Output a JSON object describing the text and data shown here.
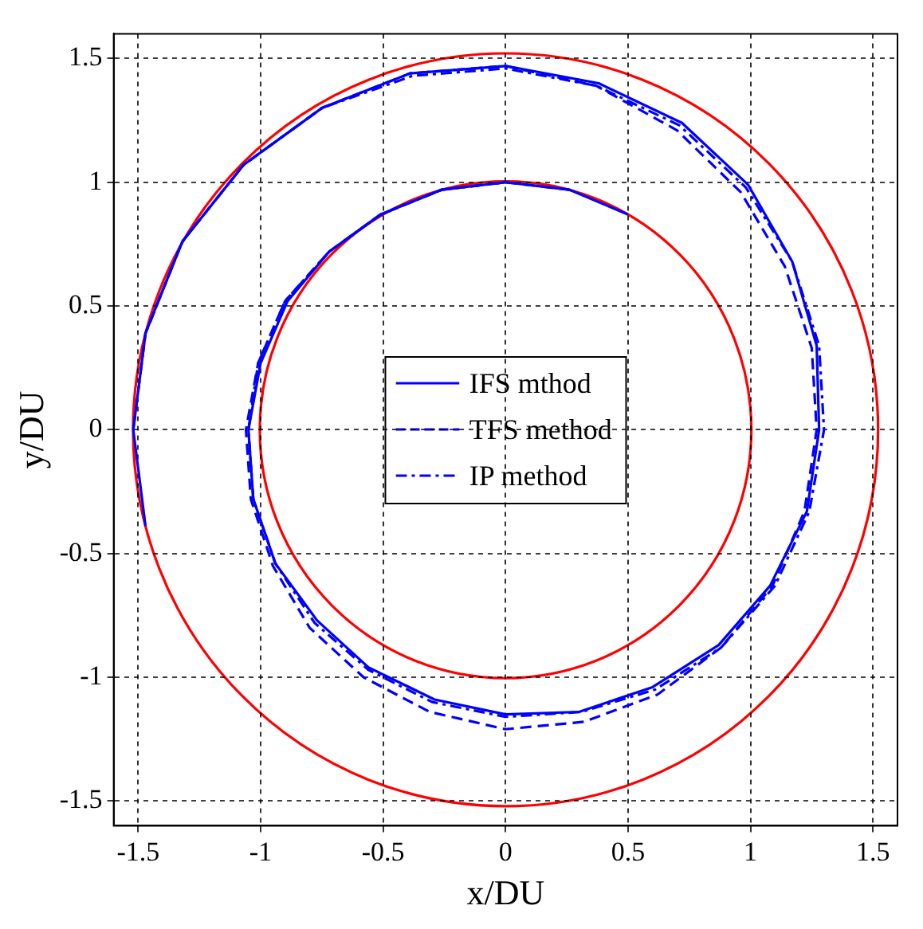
{
  "chart_data": {
    "type": "line",
    "xlabel": "x/DU",
    "ylabel": "y/DU",
    "xlim": [
      -1.6,
      1.6
    ],
    "ylim": [
      -1.6,
      1.6
    ],
    "xticks": [
      -1.5,
      -1,
      -0.5,
      0,
      0.5,
      1,
      1.5
    ],
    "yticks": [
      -1.5,
      -1,
      -0.5,
      0,
      0.5,
      1,
      1.5
    ],
    "grid": true,
    "legend": "center",
    "marker": "none",
    "series": [
      {
        "name": "IFS mthod",
        "color": "#0000ff",
        "line_style": "solid",
        "x": [
          0.5,
          0.26,
          0,
          -0.26,
          -0.51,
          -0.72,
          -0.89,
          -1.0,
          -1.05,
          -1.03,
          -0.94,
          -0.77,
          -0.56,
          -0.29,
          0,
          0.3,
          0.6,
          0.87,
          1.08,
          1.23,
          1.28,
          1.27,
          1.17,
          0.99,
          0.72,
          0.38,
          0,
          -0.39,
          -0.75,
          -1.07,
          -1.32,
          -1.47,
          -1.52,
          -1.47
        ],
        "values": [
          0.87,
          0.97,
          1,
          0.97,
          0.87,
          0.72,
          0.52,
          0.27,
          0,
          -0.28,
          -0.54,
          -0.77,
          -0.96,
          -1.09,
          -1.15,
          -1.14,
          -1.04,
          -0.87,
          -0.63,
          -0.33,
          0,
          0.34,
          0.68,
          0.99,
          1.24,
          1.4,
          1.47,
          1.44,
          1.3,
          1.07,
          0.76,
          0.39,
          0,
          -0.39
        ]
      },
      {
        "name": "TFS method",
        "color": "#0000ff",
        "line_style": "dashed",
        "x": [
          0.26,
          0,
          -0.26,
          -0.51,
          -0.72,
          -0.9,
          -1.01,
          -1.06,
          -1.04,
          -0.95,
          -0.8,
          -0.58,
          -0.31,
          0,
          0.32,
          0.62,
          0.88,
          1.09,
          1.22,
          1.27,
          1.25,
          1.14,
          0.96,
          0.7,
          0.37,
          0,
          -0.39,
          -0.75,
          -1.07,
          -1.32,
          -1.47,
          -1.52
        ],
        "values": [
          0.97,
          1,
          0.97,
          0.87,
          0.72,
          0.52,
          0.27,
          0,
          -0.28,
          -0.55,
          -0.8,
          -1.0,
          -1.14,
          -1.21,
          -1.18,
          -1.07,
          -0.88,
          -0.63,
          -0.33,
          0,
          0.33,
          0.66,
          0.96,
          1.21,
          1.39,
          1.47,
          1.44,
          1.3,
          1.07,
          0.76,
          0.39,
          0
        ]
      },
      {
        "name": "IP method",
        "color": "#0000ff",
        "line_style": "dashdot",
        "x": [
          0,
          -0.26,
          -0.51,
          -0.72,
          -0.9,
          -1.01,
          -1.05,
          -1.03,
          -0.94,
          -0.78,
          -0.56,
          -0.3,
          0,
          0.31,
          0.61,
          0.88,
          1.1,
          1.24,
          1.3,
          1.28,
          1.17,
          0.98,
          0.71,
          0.37,
          0,
          -0.38,
          -0.75,
          -1.07,
          -1.32,
          -1.47
        ],
        "values": [
          1,
          0.97,
          0.87,
          0.72,
          0.52,
          0.27,
          0,
          -0.28,
          -0.54,
          -0.78,
          -0.97,
          -1.1,
          -1.16,
          -1.14,
          -1.05,
          -0.88,
          -0.63,
          -0.33,
          0,
          0.34,
          0.68,
          0.98,
          1.23,
          1.39,
          1.46,
          1.43,
          1.3,
          1.07,
          0.76,
          0.39
        ]
      }
    ]
  }
}
